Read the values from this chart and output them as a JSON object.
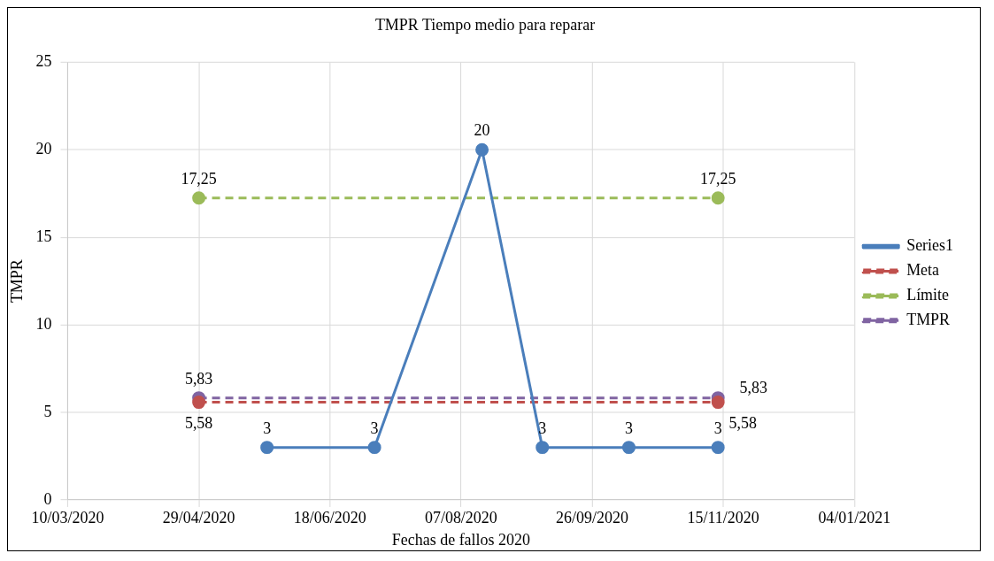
{
  "chart_data": {
    "type": "line",
    "title": "TMPR Tiempo medio para reparar",
    "xlabel": "Fechas de fallos 2020",
    "ylabel": "TMPR",
    "xlim": [
      "2020-03-10",
      "2021-01-04"
    ],
    "xticks": [
      {
        "value": "2020-03-10",
        "label": "10/03/2020"
      },
      {
        "value": "2020-04-29",
        "label": "29/04/2020"
      },
      {
        "value": "2020-06-18",
        "label": "18/06/2020"
      },
      {
        "value": "2020-08-07",
        "label": "07/08/2020"
      },
      {
        "value": "2020-09-26",
        "label": "26/09/2020"
      },
      {
        "value": "2020-11-15",
        "label": "15/11/2020"
      },
      {
        "value": "2021-01-04",
        "label": "04/01/2021"
      }
    ],
    "ylim": [
      0,
      25
    ],
    "yticks": [
      0,
      5,
      10,
      15,
      20,
      25
    ],
    "grid": true,
    "legend": "right",
    "marker": "circle",
    "series": [
      {
        "name": "Series1",
        "color": "#4a7ebb",
        "line_style": "solid",
        "x": [
          "2020-05-25",
          "2020-07-05",
          "2020-08-15",
          "2020-09-07",
          "2020-10-10",
          "2020-11-13"
        ],
        "values": [
          3,
          3,
          20,
          3,
          3,
          3
        ],
        "value_labels": [
          "3",
          "3",
          "20",
          "3",
          "3",
          "3"
        ]
      },
      {
        "name": "Meta",
        "color": "#c0504d",
        "line_style": "dashed",
        "x": [
          "2020-04-29",
          "2020-11-13"
        ],
        "values": [
          5.58,
          5.58
        ],
        "value_labels": [
          "5,58",
          "5,58"
        ]
      },
      {
        "name": "Límite",
        "color": "#9bbb59",
        "line_style": "dashed",
        "x": [
          "2020-04-29",
          "2020-11-13"
        ],
        "values": [
          17.25,
          17.25
        ],
        "value_labels": [
          "17,25",
          "17,25"
        ]
      },
      {
        "name": "TMPR",
        "color": "#8064a2",
        "line_style": "dashed",
        "x": [
          "2020-04-29",
          "2020-11-13"
        ],
        "values": [
          5.83,
          5.83
        ],
        "value_labels": [
          "5,83",
          "5,83"
        ]
      }
    ]
  }
}
